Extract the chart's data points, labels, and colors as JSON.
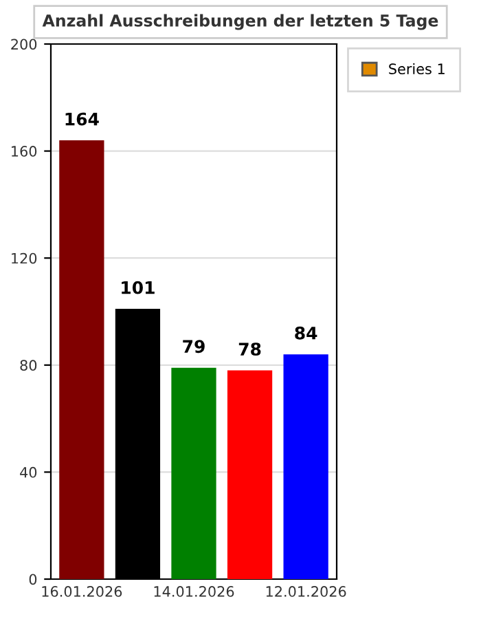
{
  "chart_data": {
    "type": "bar",
    "title": "Anzahl Ausschreibungen der letzten 5 Tage",
    "categories": [
      "16.01.2026",
      null,
      "14.01.2026",
      null,
      "12.01.2026"
    ],
    "series": [
      {
        "name": "Series 1",
        "color": "#e08a00",
        "values": [
          164,
          101,
          79,
          78,
          84
        ],
        "colors": [
          "#800000",
          "#000000",
          "#008000",
          "#ff0000",
          "#0000ff"
        ]
      }
    ],
    "ylim": [
      0,
      200
    ],
    "yticks": [
      0,
      40,
      80,
      120,
      160,
      200
    ],
    "grid": "y",
    "legend": "top right",
    "data_labels": true
  }
}
